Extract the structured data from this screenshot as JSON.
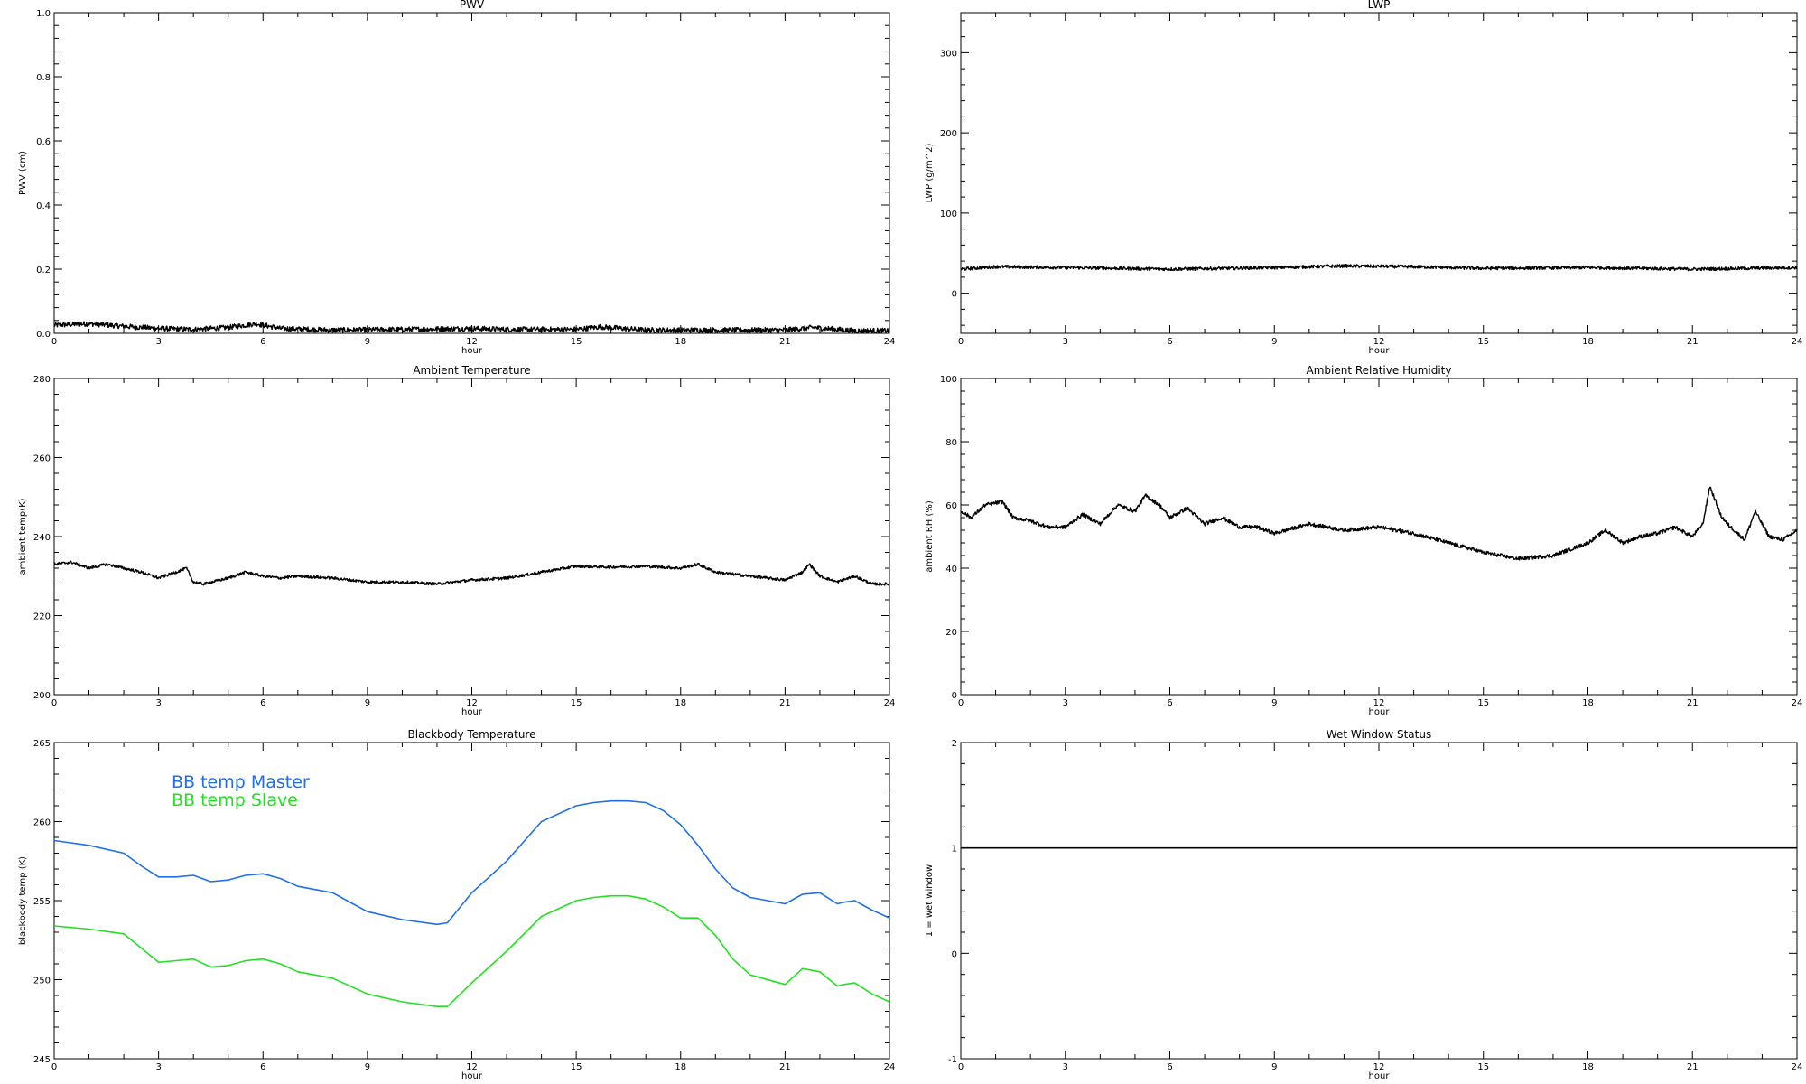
{
  "colors": {
    "axes": "#000000",
    "master": "#1f6fe6",
    "slave": "#22e022",
    "trace": "#000000"
  },
  "chart_data": [
    {
      "id": "pwv",
      "type": "line",
      "title": "PWV",
      "xlabel": "hour",
      "ylabel": "PWV (cm)",
      "xlim": [
        0,
        24
      ],
      "ylim": [
        0,
        1.0
      ],
      "xticks": [
        0,
        3,
        6,
        9,
        12,
        15,
        18,
        21,
        24
      ],
      "yticks": [
        0.0,
        0.2,
        0.4,
        0.6,
        0.8,
        1.0
      ],
      "ytick_labels": [
        "0.0",
        "0.2",
        "0.4",
        "0.6",
        "0.8",
        "1.0"
      ],
      "noisy": true,
      "noise": 0.008,
      "series": [
        {
          "color_key": "trace",
          "x": [
            0,
            1,
            2,
            3,
            4,
            5,
            5.8,
            6.5,
            8,
            10,
            12,
            13,
            15,
            15.7,
            17,
            19,
            21,
            21.8,
            23,
            24
          ],
          "y": [
            0.025,
            0.03,
            0.022,
            0.015,
            0.012,
            0.018,
            0.03,
            0.015,
            0.01,
            0.012,
            0.015,
            0.012,
            0.012,
            0.02,
            0.01,
            0.01,
            0.01,
            0.018,
            0.008,
            0.008
          ]
        }
      ]
    },
    {
      "id": "lwp",
      "type": "line",
      "title": "LWP",
      "xlabel": "hour",
      "ylabel": "LWP (g/m^2)",
      "xlim": [
        0,
        24
      ],
      "ylim": [
        -50,
        350
      ],
      "xticks": [
        0,
        3,
        6,
        9,
        12,
        15,
        18,
        21,
        24
      ],
      "yticks": [
        0,
        100,
        200,
        300
      ],
      "ytick_labels": [
        "0",
        "100",
        "200",
        "300"
      ],
      "noisy": true,
      "noise": 2.0,
      "series": [
        {
          "color_key": "trace",
          "x": [
            0,
            1,
            3,
            6,
            9,
            11,
            13,
            15,
            18,
            21,
            24
          ],
          "y": [
            30,
            33,
            32,
            30,
            32,
            34,
            33,
            31,
            32,
            30,
            32
          ]
        }
      ]
    },
    {
      "id": "amb_temp",
      "type": "line",
      "title": "Ambient Temperature",
      "xlabel": "hour",
      "ylabel": "ambient temp(K)",
      "xlim": [
        0,
        24
      ],
      "ylim": [
        200,
        280
      ],
      "xticks": [
        0,
        3,
        6,
        9,
        12,
        15,
        18,
        21,
        24
      ],
      "yticks": [
        200,
        220,
        240,
        260,
        280
      ],
      "ytick_labels": [
        "200",
        "220",
        "240",
        "260",
        "280"
      ],
      "noisy": true,
      "noise": 0.35,
      "series": [
        {
          "color_key": "trace",
          "x": [
            0,
            0.5,
            1,
            1.5,
            2,
            2.5,
            3,
            3.5,
            3.8,
            4,
            4.3,
            5,
            5.5,
            6,
            6.5,
            7,
            8,
            9,
            10,
            11,
            12,
            13,
            14,
            15,
            16,
            17,
            18,
            18.5,
            19,
            20,
            21,
            21.5,
            21.7,
            22,
            22.5,
            23,
            23.5,
            24
          ],
          "y": [
            233,
            233.5,
            232,
            233,
            232,
            231,
            229.5,
            231,
            232,
            228.5,
            228,
            229.5,
            231,
            230,
            229.5,
            230,
            229.5,
            228.5,
            228.5,
            228,
            229,
            229.5,
            231,
            232.5,
            232.3,
            232.5,
            232,
            233,
            231,
            230,
            229,
            231,
            233,
            230,
            228.5,
            230,
            228,
            228
          ]
        }
      ]
    },
    {
      "id": "amb_rh",
      "type": "line",
      "title": "Ambient Relative Humidity",
      "xlabel": "hour",
      "ylabel": "ambient RH (%)",
      "xlim": [
        0,
        24
      ],
      "ylim": [
        0,
        100
      ],
      "xticks": [
        0,
        3,
        6,
        9,
        12,
        15,
        18,
        21,
        24
      ],
      "yticks": [
        0,
        20,
        40,
        60,
        80,
        100
      ],
      "ytick_labels": [
        "0",
        "20",
        "40",
        "60",
        "80",
        "100"
      ],
      "noisy": true,
      "noise": 0.6,
      "series": [
        {
          "color_key": "trace",
          "x": [
            0,
            0.3,
            0.7,
            1.2,
            1.5,
            2,
            2.5,
            3,
            3.5,
            4,
            4.5,
            5,
            5.3,
            5.7,
            6,
            6.5,
            7,
            7.5,
            8,
            8.5,
            9,
            10,
            11,
            12,
            13,
            14,
            15,
            16,
            17,
            18,
            18.5,
            19,
            19.5,
            20,
            20.5,
            21,
            21.3,
            21.5,
            21.8,
            22,
            22.5,
            22.8,
            23.2,
            23.6,
            24
          ],
          "y": [
            58,
            56,
            60,
            61,
            56,
            55,
            53,
            53,
            57,
            54,
            60,
            58,
            63,
            60,
            56,
            59,
            54,
            56,
            53,
            53,
            51,
            54,
            52,
            53,
            51,
            48,
            45,
            43,
            44,
            48,
            52,
            48,
            50,
            51,
            53,
            50,
            54,
            66,
            57,
            54,
            49,
            58,
            50,
            49,
            52
          ]
        }
      ]
    },
    {
      "id": "bb_temp",
      "type": "line",
      "title": "Blackbody Temperature",
      "xlabel": "hour",
      "ylabel": "blackbody temp (K)",
      "xlim": [
        0,
        24
      ],
      "ylim": [
        245,
        265
      ],
      "xticks": [
        0,
        3,
        6,
        9,
        12,
        15,
        18,
        21,
        24
      ],
      "yticks": [
        245,
        250,
        255,
        260,
        265
      ],
      "ytick_labels": [
        "245",
        "250",
        "255",
        "260",
        "265"
      ],
      "noisy": false,
      "noise": 0,
      "legend": {
        "placement": "top-left",
        "entries": [
          "BB temp Master",
          "BB temp Slave"
        ]
      },
      "series": [
        {
          "name": "BB temp Master",
          "color_key": "master",
          "x": [
            0,
            1,
            2,
            2.5,
            3,
            3.5,
            4,
            4.5,
            5,
            5.5,
            6,
            6.5,
            7,
            8,
            9,
            10,
            11,
            11.3,
            12,
            13,
            14,
            15,
            15.5,
            16,
            16.5,
            17,
            17.5,
            18,
            18.5,
            19,
            19.5,
            20,
            21,
            21.5,
            22,
            22.5,
            22.7,
            23,
            23.5,
            24
          ],
          "y": [
            258.8,
            258.5,
            258,
            257.2,
            256.5,
            256.5,
            256.6,
            256.2,
            256.3,
            256.6,
            256.7,
            256.4,
            255.9,
            255.5,
            254.3,
            253.8,
            253.5,
            253.6,
            255.5,
            257.5,
            260,
            261,
            261.2,
            261.3,
            261.3,
            261.2,
            260.7,
            259.8,
            258.5,
            257,
            255.8,
            255.2,
            254.8,
            255.4,
            255.5,
            254.8,
            254.9,
            255,
            254.4,
            253.9
          ]
        },
        {
          "name": "BB temp Slave",
          "color_key": "slave",
          "x": [
            0,
            1,
            2,
            2.5,
            3,
            3.5,
            4,
            4.5,
            5,
            5.5,
            6,
            6.5,
            7,
            8,
            9,
            10,
            11,
            11.3,
            12,
            13,
            14,
            15,
            15.5,
            16,
            16.5,
            17,
            17.5,
            18,
            18.5,
            19,
            19.5,
            20,
            21,
            21.5,
            22,
            22.5,
            22.7,
            23,
            23.5,
            24
          ],
          "y": [
            253.4,
            253.2,
            252.9,
            252,
            251.1,
            251.2,
            251.3,
            250.8,
            250.9,
            251.2,
            251.3,
            251,
            250.5,
            250.1,
            249.1,
            248.6,
            248.3,
            248.3,
            249.8,
            251.8,
            254,
            255,
            255.2,
            255.3,
            255.3,
            255.1,
            254.6,
            253.9,
            253.9,
            252.8,
            251.3,
            250.3,
            249.7,
            250.7,
            250.5,
            249.6,
            249.7,
            249.8,
            249.1,
            248.6
          ]
        }
      ]
    },
    {
      "id": "wet_window",
      "type": "line",
      "title": "Wet Window Status",
      "xlabel": "hour",
      "ylabel": "1 = wet window",
      "xlim": [
        0,
        24
      ],
      "ylim": [
        -1,
        2
      ],
      "xticks": [
        0,
        3,
        6,
        9,
        12,
        15,
        18,
        21,
        24
      ],
      "yticks": [
        -1,
        0,
        1,
        2
      ],
      "ytick_labels": [
        "-1",
        "0",
        "1",
        "2"
      ],
      "noisy": false,
      "noise": 0,
      "series": [
        {
          "color_key": "trace",
          "x": [
            0,
            24
          ],
          "y": [
            1,
            1
          ]
        }
      ]
    }
  ]
}
